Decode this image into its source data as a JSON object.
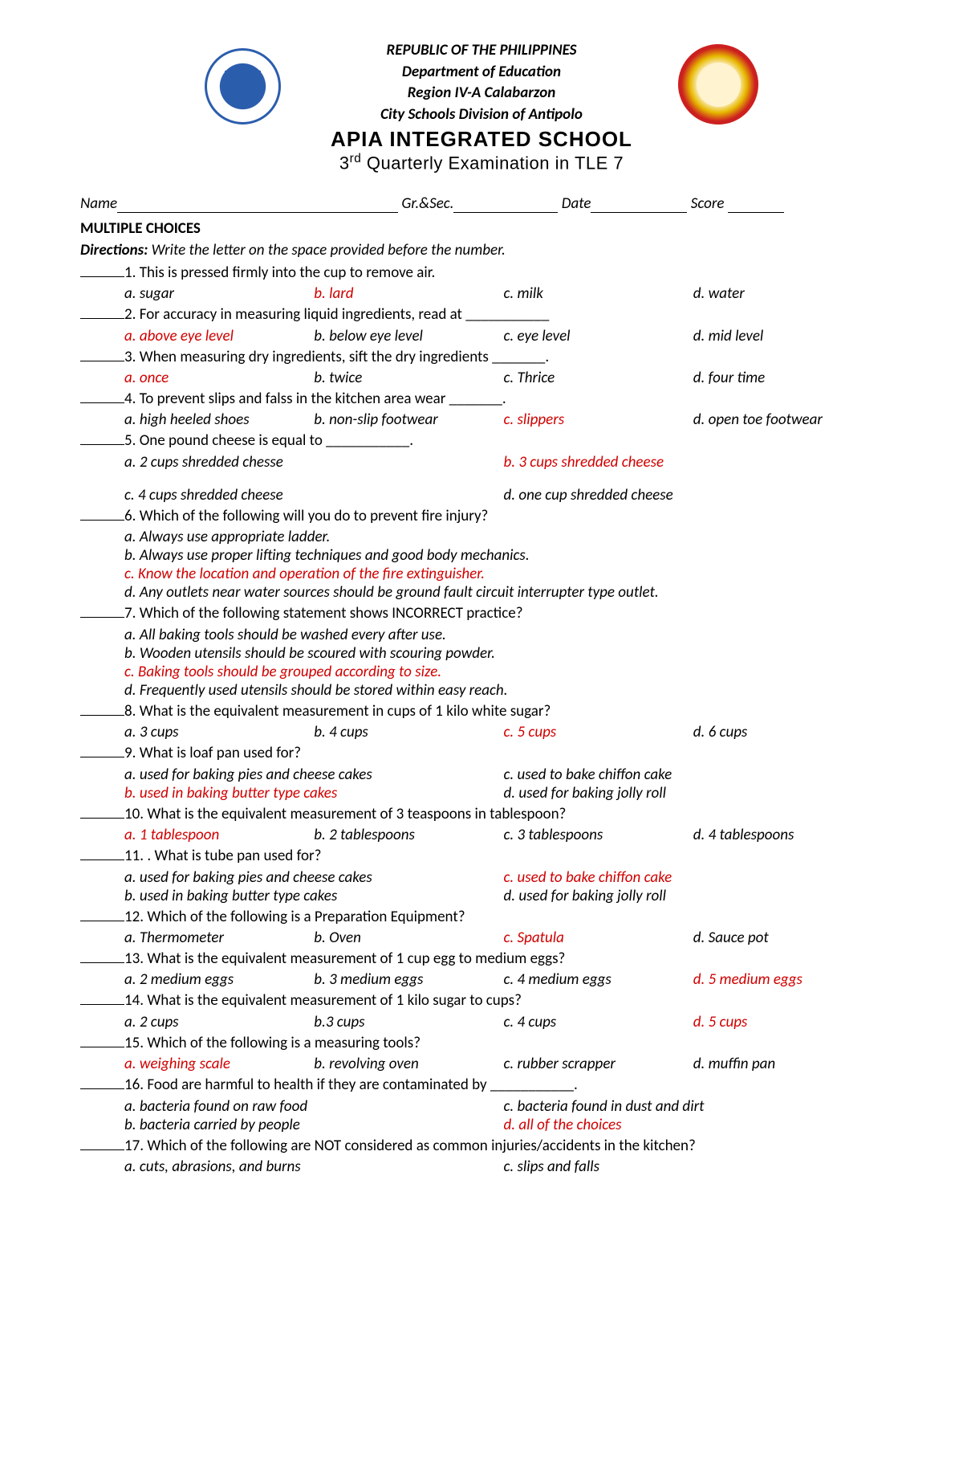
{
  "header": {
    "line1": "REPUBLIC OF THE PHILIPPINES",
    "line2": "Department of Education",
    "line3": "Region IV-A Calabarzon",
    "line4": "City Schools Division of Antipolo",
    "school": "APIA INTEGRATED SCHOOL",
    "exam_pre": "3",
    "exam_sup": "rd",
    "exam_post": " Quarterly Examination in TLE 7"
  },
  "info": {
    "name": "Name",
    "grsec": " Gr.&Sec.",
    "date": " Date",
    "score": " Score "
  },
  "section_title": "MULTIPLE CHOICES",
  "directions_label": "Directions:",
  "directions_text": " Write the letter on the space provided before the number.",
  "questions": [
    {
      "num": "1.",
      "text": " This is pressed firmly into the cup to remove air.",
      "layout": "4col",
      "choices": [
        {
          "t": "a. sugar",
          "a": false
        },
        {
          "t": "b. lard",
          "a": true
        },
        {
          "t": "c. milk",
          "a": false
        },
        {
          "t": "d. water",
          "a": false
        }
      ]
    },
    {
      "num": "2.",
      "text": " For accuracy in measuring liquid ingredients, read at ___________",
      "layout": "4col",
      "choices": [
        {
          "t": "a. above eye level",
          "a": true
        },
        {
          "t": "b. below eye level",
          "a": false
        },
        {
          "t": "c. eye level",
          "a": false
        },
        {
          "t": "d. mid level",
          "a": false
        }
      ]
    },
    {
      "num": "3.",
      "text": " When measuring dry ingredients, sift the dry ingredients _______.",
      "layout": "4col",
      "choices": [
        {
          "t": "a. once",
          "a": true
        },
        {
          "t": "b. twice",
          "a": false
        },
        {
          "t": "c. Thrice",
          "a": false
        },
        {
          "t": "d. four time",
          "a": false
        }
      ]
    },
    {
      "num": "4.",
      "text": " To prevent slips and falss in the kitchen area wear _______.",
      "layout": "4col",
      "choices": [
        {
          "t": "a. high heeled shoes",
          "a": false
        },
        {
          "t": "b. non-slip footwear",
          "a": false
        },
        {
          "t": "c. slippers",
          "a": true
        },
        {
          "t": "d. open toe footwear",
          "a": false
        }
      ]
    },
    {
      "num": "5.",
      "text": " One pound cheese is equal to ___________.",
      "layout": "2col",
      "choices": [
        {
          "t": "a. 2 cups shredded chesse",
          "a": false
        },
        {
          "t": "b. 3 cups shredded cheese",
          "a": true
        }
      ]
    },
    {
      "num": "",
      "text": "",
      "layout": "2col",
      "gap": true,
      "choices": [
        {
          "t": "c. 4 cups shredded cheese",
          "a": false
        },
        {
          "t": "d. one cup shredded cheese",
          "a": false
        }
      ]
    },
    {
      "num": "6.",
      "text": " Which of the following will you do to prevent fire injury?",
      "layout": "full",
      "choices": [
        {
          "t": "a. Always use appropriate ladder.",
          "a": false
        },
        {
          "t": "b. Always use proper lifting techniques and good body mechanics.",
          "a": false
        },
        {
          "t": "c. Know the location and operation of the fire extinguisher.",
          "a": true
        },
        {
          "t": "d. Any outlets near water sources should be ground fault circuit interrupter type outlet.",
          "a": false
        }
      ]
    },
    {
      "num": "7.",
      "text": " Which of the following statement shows INCORRECT practice?",
      "layout": "full",
      "choices": [
        {
          "t": "a. All baking tools should be washed every after use.",
          "a": false,
          "no_i": true
        },
        {
          "t": "b. Wooden utensils should be scoured with scouring powder.",
          "a": false
        },
        {
          "t": "c. Baking tools should be grouped according to size.",
          "a": true
        },
        {
          "t": "d. Frequently used utensils should be stored within easy reach.",
          "a": false
        }
      ]
    },
    {
      "num": "8.",
      "text": " What is the equivalent measurement in cups of 1 kilo white sugar?",
      "layout": "4col",
      "choices": [
        {
          "t": "a. 3 cups",
          "a": false,
          "no_i": true,
          "prefix_no_i": "a. "
        },
        {
          "t": "b. 4 cups",
          "a": false
        },
        {
          "t": "c. 5 cups",
          "a": true
        },
        {
          "t": "d. 6 cups",
          "a": false
        }
      ]
    },
    {
      "num": "9.",
      "text": " What is loaf pan used for?",
      "layout": "2col",
      "choices": [
        {
          "t": "a. used for baking pies and cheese cakes",
          "a": false
        },
        {
          "t": "c. used to bake chiffon cake",
          "a": false
        },
        {
          "t": "b. used in baking butter type cakes",
          "a": true
        },
        {
          "t": "d. used for baking jolly roll",
          "a": false
        }
      ]
    },
    {
      "num": "10.",
      "text": " What is the equivalent measurement of 3 teaspoons in tablespoon?",
      "layout": "4col",
      "choices": [
        {
          "t": "a. 1 tablespoon",
          "a": true
        },
        {
          "t": "b. 2 tablespoons",
          "a": false
        },
        {
          "t": "c. 3 tablespoons",
          "a": false
        },
        {
          "t": "d. 4 tablespoons",
          "a": false
        }
      ]
    },
    {
      "num": "11.",
      "text": " . What is tube pan used for?",
      "layout": "2col",
      "choices": [
        {
          "t": "a. used for baking pies and cheese cakes",
          "a": false
        },
        {
          "t": "c. used to bake chiffon cake",
          "a": true
        },
        {
          "t": "b. used in baking butter type cakes",
          "a": false
        },
        {
          "t": "d. used for baking jolly roll",
          "a": false
        }
      ]
    },
    {
      "num": "12.",
      "text": " Which of the following is a Preparation Equipment?",
      "layout": "4col",
      "choices": [
        {
          "t": "a. Thermometer",
          "a": false
        },
        {
          "t": "b. Oven",
          "a": false
        },
        {
          "t": "c. Spatula",
          "a": true
        },
        {
          "t": "d. Sauce pot",
          "a": false
        }
      ]
    },
    {
      "num": "13.",
      "text": " What is the equivalent measurement of 1 cup egg to medium eggs?",
      "layout": "4col",
      "choices": [
        {
          "t": "a. 2 medium eggs",
          "a": false
        },
        {
          "t": "b. 3 medium eggs",
          "a": false
        },
        {
          "t": "c. 4 medium eggs",
          "a": false
        },
        {
          "t": "d. 5 medium eggs",
          "a": true
        }
      ]
    },
    {
      "num": "14.",
      "text": " What is the equivalent measurement of 1 kilo sugar to cups?",
      "layout": "4col",
      "choices": [
        {
          "t": "a. 2 cups",
          "a": false
        },
        {
          "t": "b.3 cups",
          "a": false
        },
        {
          "t": "c. 4 cups",
          "a": false
        },
        {
          "t": "d. 5 cups",
          "a": true
        }
      ]
    },
    {
      "num": "15.",
      "text": " Which of the following is a measuring tools?",
      "layout": "4col",
      "choices": [
        {
          "t": "a. weighing scale",
          "a": true
        },
        {
          "t": "b. revolving oven",
          "a": false
        },
        {
          "t": "c. rubber scrapper",
          "a": false
        },
        {
          "t": "d. muffin pan",
          "a": false
        }
      ]
    },
    {
      "num": "16.",
      "text": " Food are harmful to health if they are contaminated by ___________.",
      "layout": "2col",
      "choices": [
        {
          "t": "a. bacteria found on raw food",
          "a": false
        },
        {
          "t": "c. bacteria found in dust and dirt",
          "a": false
        },
        {
          "t": "b. bacteria carried by people",
          "a": false
        },
        {
          "t": "d. all of the choices",
          "a": true
        }
      ]
    },
    {
      "num": "17.",
      "text": " Which of the following are NOT considered as common injuries/accidents in the kitchen?",
      "layout": "2col",
      "choices": [
        {
          "t": "a. cuts, abrasions, and burns",
          "a": false
        },
        {
          "t": "c. slips and falls",
          "a": false
        }
      ]
    }
  ]
}
